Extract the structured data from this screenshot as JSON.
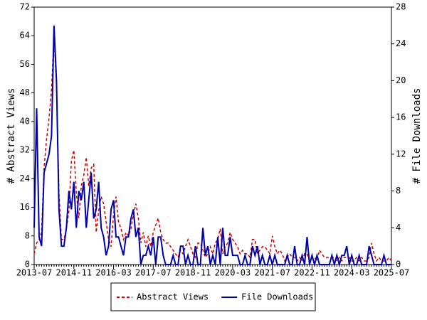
{
  "chart_data": {
    "type": "line",
    "ylabel": "# Abstract Views",
    "y2label": "# File Downloads",
    "x": [
      "2013-07",
      "2013-08",
      "2013-09",
      "2013-10",
      "2013-11",
      "2013-12",
      "2014-01",
      "2014-02",
      "2014-03",
      "2014-04",
      "2014-05",
      "2014-06",
      "2014-07",
      "2014-08",
      "2014-09",
      "2014-10",
      "2014-11",
      "2014-12",
      "2015-01",
      "2015-02",
      "2015-03",
      "2015-04",
      "2015-05",
      "2015-06",
      "2015-07",
      "2015-08",
      "2015-09",
      "2015-10",
      "2015-11",
      "2015-12",
      "2016-01",
      "2016-02",
      "2016-03",
      "2016-04",
      "2016-05",
      "2016-06",
      "2016-07",
      "2016-08",
      "2016-09",
      "2016-10",
      "2016-11",
      "2016-12",
      "2017-01",
      "2017-02",
      "2017-03",
      "2017-04",
      "2017-05",
      "2017-06",
      "2017-07",
      "2017-08",
      "2017-09",
      "2017-10",
      "2017-11",
      "2017-12",
      "2018-01",
      "2018-02",
      "2018-03",
      "2018-04",
      "2018-05",
      "2018-06",
      "2018-07",
      "2018-08",
      "2018-09",
      "2018-10",
      "2018-11",
      "2018-12",
      "2019-01",
      "2019-02",
      "2019-03",
      "2019-04",
      "2019-05",
      "2019-06",
      "2019-07",
      "2019-08",
      "2019-09",
      "2019-10",
      "2019-11",
      "2019-12",
      "2020-01",
      "2020-02",
      "2020-03",
      "2020-04",
      "2020-05",
      "2020-06",
      "2020-07",
      "2020-08",
      "2020-09",
      "2020-10",
      "2020-11",
      "2020-12",
      "2021-01",
      "2021-02",
      "2021-03",
      "2021-04",
      "2021-05",
      "2021-06",
      "2021-07",
      "2021-08",
      "2021-09",
      "2021-10",
      "2021-11",
      "2021-12",
      "2022-01",
      "2022-02",
      "2022-03",
      "2022-04",
      "2022-05",
      "2022-06",
      "2022-07",
      "2022-08",
      "2022-09",
      "2022-10",
      "2022-11",
      "2022-12",
      "2023-01",
      "2023-02",
      "2023-03",
      "2023-04",
      "2023-05",
      "2023-06",
      "2023-07",
      "2023-08",
      "2023-09",
      "2023-10",
      "2023-11",
      "2023-12",
      "2024-01",
      "2024-02",
      "2024-03",
      "2024-04",
      "2024-05",
      "2024-06",
      "2024-07",
      "2024-08",
      "2024-09",
      "2024-10",
      "2024-11",
      "2024-12",
      "2025-01",
      "2025-02",
      "2025-03",
      "2025-04",
      "2025-05",
      "2025-06",
      "2025-07"
    ],
    "xticks": [
      "2013-07",
      "2014-11",
      "2016-03",
      "2017-07",
      "2018-11",
      "2020-03",
      "2021-07",
      "2022-11",
      "2024-03",
      "2025-07"
    ],
    "ylim": [
      0,
      72
    ],
    "yticks": [
      0,
      8,
      16,
      24,
      32,
      40,
      48,
      56,
      64,
      72
    ],
    "y2lim": [
      0,
      28
    ],
    "y2ticks": [
      0,
      4,
      8,
      12,
      16,
      20,
      24,
      28
    ],
    "series": [
      {
        "name": "Abstract Views",
        "color": "#cc0000",
        "dash": true,
        "values": [
          3,
          6,
          7,
          9,
          27,
          35,
          41,
          49,
          64,
          50,
          20,
          7,
          7,
          10,
          15,
          29,
          32,
          20,
          13,
          22,
          25,
          30,
          22,
          27,
          28,
          9,
          15,
          19,
          17,
          12,
          7,
          5,
          14,
          19,
          12,
          10,
          7,
          9,
          8,
          10,
          14,
          17,
          13,
          6,
          9,
          5,
          8,
          5,
          9,
          11,
          13,
          9,
          7,
          6,
          6,
          5,
          4,
          3,
          2,
          4,
          3,
          5,
          7,
          5,
          3,
          2,
          6,
          6,
          4,
          2,
          3,
          5,
          3,
          6,
          7,
          10,
          3,
          5,
          6,
          9,
          7,
          6,
          5,
          3,
          4,
          3,
          3,
          2,
          7,
          7,
          3,
          4,
          5,
          5,
          4,
          3,
          8,
          5,
          3,
          4,
          3,
          1,
          2,
          3,
          2,
          2,
          1,
          2,
          1,
          3,
          3,
          1,
          2,
          2,
          1,
          4,
          3,
          2,
          2,
          2,
          2,
          2,
          1,
          2,
          1,
          2,
          2,
          2,
          1,
          1,
          2,
          1,
          2,
          1,
          1,
          2,
          6,
          3,
          1,
          2,
          1,
          1,
          1,
          2,
          1
        ]
      },
      {
        "name": "File Downloads",
        "color": "#0000aa",
        "axis": "y2",
        "values": [
          4,
          17,
          3,
          2,
          10,
          11,
          12,
          14,
          26,
          20,
          6,
          2,
          2,
          4,
          8,
          6,
          9,
          4,
          8,
          7,
          9,
          4,
          7,
          10,
          5,
          6,
          9,
          4,
          3,
          1,
          2,
          6,
          7,
          3,
          3,
          2,
          1,
          3,
          3,
          5,
          6,
          3,
          4,
          0,
          1,
          1,
          2,
          1,
          3,
          0,
          3,
          3,
          1,
          0,
          0,
          0,
          1,
          0,
          0,
          2,
          2,
          0,
          1,
          0,
          0,
          2,
          0,
          0,
          4,
          1,
          2,
          0,
          1,
          0,
          3,
          0,
          4,
          1,
          1,
          3,
          1,
          1,
          1,
          0,
          0,
          1,
          0,
          0,
          2,
          1,
          2,
          0,
          1,
          0,
          0,
          1,
          0,
          1,
          0,
          0,
          0,
          0,
          1,
          0,
          0,
          2,
          0,
          0,
          1,
          0,
          3,
          0,
          1,
          0,
          1,
          0,
          0,
          0,
          0,
          0,
          1,
          0,
          1,
          0,
          1,
          1,
          2,
          0,
          1,
          0,
          0,
          1,
          0,
          0,
          0,
          2,
          1,
          0,
          0,
          0,
          0,
          1,
          0,
          0,
          0
        ]
      }
    ],
    "legend": "bottom"
  }
}
